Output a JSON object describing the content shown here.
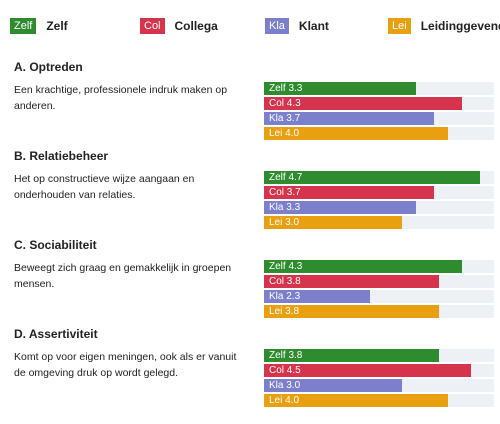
{
  "legend": [
    {
      "abbr": "Zelf",
      "label": "Zelf",
      "color": "#2e8b2e"
    },
    {
      "abbr": "Col",
      "label": "Collega",
      "color": "#d6334d"
    },
    {
      "abbr": "Kla",
      "label": "Klant",
      "color": "#7b7fcc"
    },
    {
      "abbr": "Lei",
      "label": "Leidinggevende",
      "color": "#e8a010"
    }
  ],
  "chart_data": {
    "type": "bar",
    "orientation": "horizontal",
    "xlim": [
      0,
      5
    ],
    "series": [
      {
        "name": "Zelf",
        "abbr": "Zelf",
        "color": "#2e8b2e"
      },
      {
        "name": "Collega",
        "abbr": "Col",
        "color": "#d6334d"
      },
      {
        "name": "Klant",
        "abbr": "Kla",
        "color": "#7b7fcc"
      },
      {
        "name": "Leidinggevende",
        "abbr": "Lei",
        "color": "#e8a010"
      }
    ],
    "sections": [
      {
        "title": "A. Optreden",
        "description": "Een krachtige, professionele indruk maken op anderen.",
        "values": [
          3.3,
          4.3,
          3.7,
          4.0
        ]
      },
      {
        "title": "B. Relatiebeheer",
        "description": "Het op constructieve wijze aangaan en onderhouden van relaties.",
        "values": [
          4.7,
          3.7,
          3.3,
          3.0
        ]
      },
      {
        "title": "C. Sociabiliteit",
        "description": "Beweegt zich graag en gemakkelijk in groepen mensen.",
        "values": [
          4.3,
          3.8,
          2.3,
          3.8
        ]
      },
      {
        "title": "D. Assertiviteit",
        "description": "Komt op voor eigen meningen, ook als er vanuit de omgeving druk op wordt gelegd.",
        "values": [
          3.8,
          4.5,
          3.0,
          4.0
        ]
      }
    ]
  }
}
